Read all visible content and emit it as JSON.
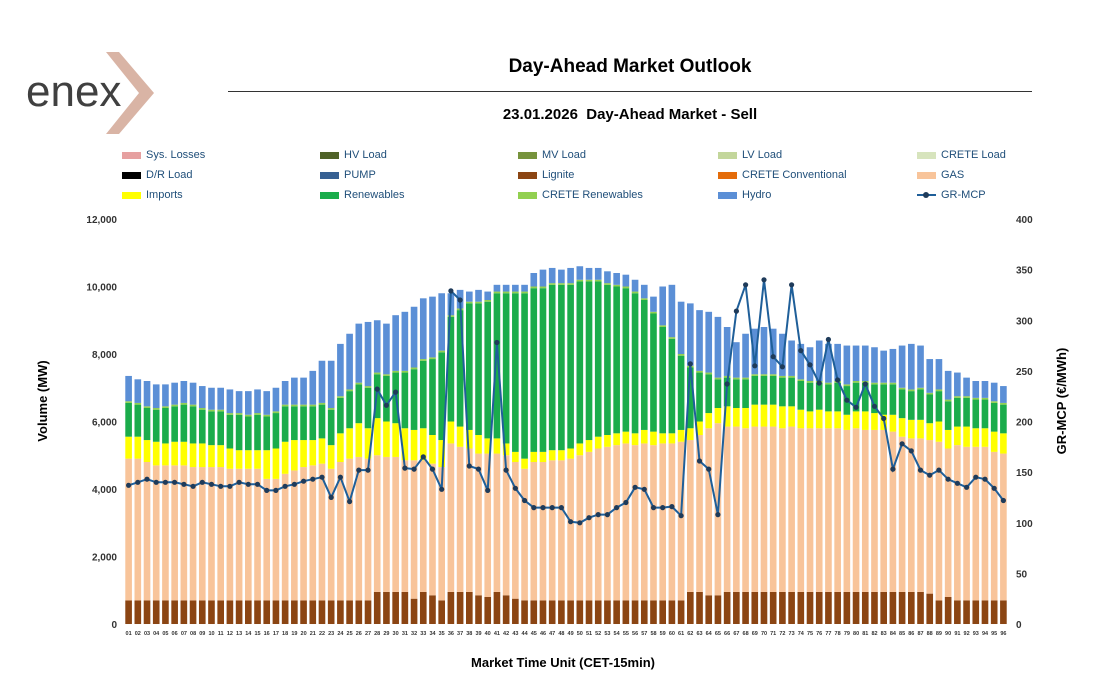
{
  "brand": {
    "logo_text": "enex",
    "accent_color": "#d9b4a5",
    "text_color": "#404040"
  },
  "header": {
    "title": "Day-Ahead Market Outlook",
    "subtitle": "23.01.2026  Day-Ahead Market - Sell"
  },
  "legend": {
    "items": [
      {
        "label": "Sys. Losses",
        "color": "#e6a0a0",
        "kind": "bar"
      },
      {
        "label": "HV Load",
        "color": "#4f6228",
        "kind": "bar"
      },
      {
        "label": "MV Load",
        "color": "#77933c",
        "kind": "bar"
      },
      {
        "label": "LV Load",
        "color": "#c3d69b",
        "kind": "bar"
      },
      {
        "label": "CRETE Load",
        "color": "#d7e4bd",
        "kind": "bar"
      },
      {
        "label": "D/R Load",
        "color": "#000000",
        "kind": "bar"
      },
      {
        "label": "PUMP",
        "color": "#366092",
        "kind": "bar"
      },
      {
        "label": "Lignite",
        "color": "#8b4513",
        "kind": "bar"
      },
      {
        "label": "CRETE Conventional",
        "color": "#e46c0a",
        "kind": "bar"
      },
      {
        "label": "GAS",
        "color": "#f8c49a",
        "kind": "bar"
      },
      {
        "label": "Imports",
        "color": "#ffff00",
        "kind": "bar"
      },
      {
        "label": "Renewables",
        "color": "#1aac4b",
        "kind": "bar"
      },
      {
        "label": "CRETE Renewables",
        "color": "#92d050",
        "kind": "bar"
      },
      {
        "label": "Hydro",
        "color": "#5b8fd6",
        "kind": "bar"
      },
      {
        "label": "GR-MCP",
        "color": "#1f5f99",
        "kind": "line"
      }
    ]
  },
  "chart_data": {
    "type": "bar",
    "stacked": true,
    "xlabel": "Market Time Unit (CET-15min)",
    "ylabel": "Volume (MW)",
    "y2label": "GR-MCP (€/MWh)",
    "ylim": [
      0,
      12000
    ],
    "y2lim": [
      0,
      400
    ],
    "yticks": [
      "0",
      "2,000",
      "4,000",
      "6,000",
      "8,000",
      "10,000",
      "12,000"
    ],
    "y2ticks": [
      "0",
      "50",
      "100",
      "150",
      "200",
      "250",
      "300",
      "350",
      "400"
    ],
    "categories": [
      "01",
      "02",
      "03",
      "04",
      "05",
      "06",
      "07",
      "08",
      "09",
      "10",
      "11",
      "12",
      "13",
      "14",
      "15",
      "16",
      "17",
      "18",
      "19",
      "20",
      "21",
      "22",
      "23",
      "24",
      "25",
      "26",
      "27",
      "28",
      "29",
      "30",
      "31",
      "32",
      "33",
      "34",
      "35",
      "36",
      "37",
      "38",
      "39",
      "40",
      "41",
      "42",
      "43",
      "44",
      "45",
      "46",
      "47",
      "48",
      "49",
      "50",
      "51",
      "52",
      "53",
      "54",
      "55",
      "56",
      "57",
      "58",
      "59",
      "60",
      "61",
      "62",
      "63",
      "64",
      "65",
      "66",
      "67",
      "68",
      "69",
      "70",
      "71",
      "72",
      "73",
      "74",
      "75",
      "76",
      "77",
      "78",
      "79",
      "80",
      "81",
      "82",
      "83",
      "84",
      "85",
      "86",
      "87",
      "88",
      "89",
      "90",
      "91",
      "92",
      "93",
      "94",
      "95",
      "96"
    ],
    "series": [
      {
        "name": "Lignite",
        "color": "#8b4513",
        "values": [
          700,
          700,
          700,
          700,
          700,
          700,
          700,
          700,
          700,
          700,
          700,
          700,
          700,
          700,
          700,
          700,
          700,
          700,
          700,
          700,
          700,
          700,
          700,
          700,
          700,
          700,
          700,
          950,
          950,
          950,
          950,
          750,
          950,
          850,
          700,
          950,
          950,
          950,
          850,
          800,
          950,
          850,
          750,
          700,
          700,
          700,
          700,
          700,
          700,
          700,
          700,
          700,
          700,
          700,
          700,
          700,
          700,
          700,
          700,
          700,
          700,
          950,
          950,
          850,
          850,
          950,
          950,
          950,
          950,
          950,
          950,
          950,
          950,
          950,
          950,
          950,
          950,
          950,
          950,
          950,
          950,
          950,
          950,
          950,
          950,
          950,
          950,
          900,
          700,
          800,
          700,
          700,
          700,
          700,
          700,
          700
        ]
      },
      {
        "name": "GAS",
        "color": "#f8c49a",
        "values": [
          4200,
          4200,
          4100,
          4000,
          4000,
          4000,
          4000,
          3950,
          3950,
          3950,
          3950,
          3900,
          3900,
          3900,
          3900,
          3600,
          3600,
          3750,
          3850,
          3950,
          4000,
          4050,
          3900,
          4100,
          4200,
          4250,
          4200,
          4050,
          4000,
          4000,
          3900,
          4100,
          3900,
          3900,
          3950,
          4400,
          4300,
          4250,
          4200,
          4250,
          4100,
          4150,
          4050,
          3900,
          4100,
          4100,
          4150,
          4150,
          4200,
          4300,
          4400,
          4500,
          4550,
          4600,
          4650,
          4600,
          4650,
          4600,
          4650,
          4650,
          4700,
          4500,
          4650,
          4950,
          5100,
          4900,
          4900,
          4850,
          4900,
          4900,
          4900,
          4850,
          4900,
          4850,
          4850,
          4850,
          4850,
          4850,
          4800,
          4850,
          4800,
          4800,
          4800,
          4750,
          4600,
          4550,
          4550,
          4550,
          4700,
          4400,
          4600,
          4550,
          4550,
          4550,
          4400,
          4350
        ]
      },
      {
        "name": "Imports",
        "color": "#ffff00",
        "values": [
          650,
          650,
          650,
          700,
          650,
          700,
          700,
          700,
          700,
          650,
          650,
          600,
          550,
          550,
          550,
          850,
          900,
          950,
          900,
          800,
          750,
          750,
          700,
          850,
          900,
          1000,
          900,
          1100,
          1050,
          1000,
          950,
          900,
          950,
          850,
          800,
          650,
          600,
          550,
          550,
          450,
          450,
          350,
          300,
          300,
          300,
          300,
          300,
          300,
          300,
          350,
          350,
          350,
          350,
          350,
          350,
          350,
          400,
          400,
          300,
          300,
          350,
          350,
          400,
          450,
          450,
          600,
          550,
          600,
          650,
          650,
          650,
          650,
          600,
          550,
          500,
          550,
          500,
          500,
          450,
          500,
          550,
          500,
          450,
          500,
          550,
          550,
          550,
          500,
          600,
          550,
          550,
          600,
          550,
          550,
          600,
          600
        ]
      },
      {
        "name": "Renewables",
        "color": "#1aac4b",
        "values": [
          1000,
          950,
          950,
          950,
          1050,
          1050,
          1100,
          1100,
          1000,
          1000,
          1000,
          1000,
          1050,
          1000,
          1050,
          1000,
          1050,
          1050,
          1000,
          1000,
          1000,
          1000,
          1050,
          1050,
          1100,
          1150,
          1200,
          1300,
          1350,
          1500,
          1650,
          1800,
          2000,
          2250,
          2600,
          3100,
          3450,
          3750,
          3900,
          4050,
          4300,
          4450,
          4700,
          4900,
          4850,
          4850,
          4900,
          4900,
          4850,
          4800,
          4700,
          4600,
          4450,
          4350,
          4250,
          4150,
          3850,
          3500,
          3150,
          2800,
          2200,
          1800,
          1450,
          1150,
          850,
          850,
          850,
          850,
          850,
          850,
          850,
          850,
          850,
          850,
          850,
          800,
          800,
          850,
          850,
          850,
          850,
          850,
          900,
          900,
          850,
          850,
          900,
          850,
          900,
          850,
          850,
          850,
          850,
          850,
          850,
          850
        ]
      },
      {
        "name": "CRETE Renewables",
        "color": "#92d050",
        "values": [
          50,
          50,
          50,
          50,
          50,
          50,
          50,
          50,
          50,
          50,
          50,
          50,
          50,
          50,
          50,
          50,
          50,
          50,
          50,
          50,
          50,
          50,
          50,
          50,
          50,
          50,
          50,
          50,
          50,
          50,
          50,
          50,
          50,
          50,
          50,
          50,
          50,
          50,
          50,
          50,
          50,
          50,
          50,
          50,
          50,
          50,
          50,
          50,
          50,
          50,
          50,
          50,
          50,
          50,
          50,
          50,
          50,
          50,
          50,
          50,
          50,
          50,
          50,
          50,
          50,
          50,
          50,
          50,
          50,
          50,
          50,
          50,
          50,
          50,
          50,
          50,
          50,
          50,
          50,
          50,
          50,
          50,
          50,
          50,
          50,
          50,
          50,
          50,
          50,
          50,
          50,
          50,
          50,
          50,
          50,
          50
        ]
      },
      {
        "name": "Hydro",
        "color": "#5b8fd6",
        "values": [
          750,
          700,
          750,
          700,
          650,
          650,
          650,
          650,
          650,
          650,
          650,
          700,
          650,
          700,
          700,
          700,
          700,
          700,
          800,
          800,
          1000,
          1250,
          1400,
          1550,
          1650,
          1750,
          1900,
          1550,
          1500,
          1650,
          1750,
          1800,
          1800,
          1800,
          1700,
          650,
          550,
          300,
          350,
          250,
          200,
          200,
          200,
          200,
          400,
          500,
          450,
          400,
          450,
          400,
          350,
          350,
          350,
          350,
          350,
          350,
          400,
          450,
          1150,
          1550,
          1550,
          1850,
          1800,
          1800,
          1800,
          1450,
          1050,
          1300,
          1350,
          1400,
          1350,
          1250,
          1050,
          1050,
          1000,
          1200,
          1150,
          1100,
          1150,
          1050,
          1050,
          1050,
          950,
          1000,
          1250,
          1350,
          1250,
          1000,
          900,
          850,
          700,
          550,
          500,
          500,
          550,
          500
        ]
      }
    ],
    "line_series": {
      "name": "GR-MCP",
      "axis": "right",
      "color": "#1f5f99",
      "values": [
        137,
        140,
        143,
        140,
        140,
        140,
        138,
        136,
        140,
        138,
        136,
        136,
        140,
        138,
        138,
        132,
        132,
        136,
        138,
        141,
        143,
        145,
        125,
        145,
        121,
        152,
        152,
        232,
        216,
        229,
        154,
        153,
        165,
        153,
        133,
        329,
        320,
        156,
        153,
        132,
        278,
        152,
        134,
        122,
        115,
        115,
        115,
        115,
        101,
        100,
        105,
        108,
        108,
        115,
        120,
        135,
        133,
        115,
        115,
        116,
        107,
        257,
        161,
        153,
        108,
        237,
        309,
        335,
        255,
        340,
        264,
        254,
        335,
        270,
        256,
        238,
        281,
        241,
        221,
        214,
        237,
        215,
        203,
        153,
        178,
        171,
        152,
        147,
        152,
        143,
        139,
        135,
        145,
        143,
        134,
        122
      ]
    }
  }
}
